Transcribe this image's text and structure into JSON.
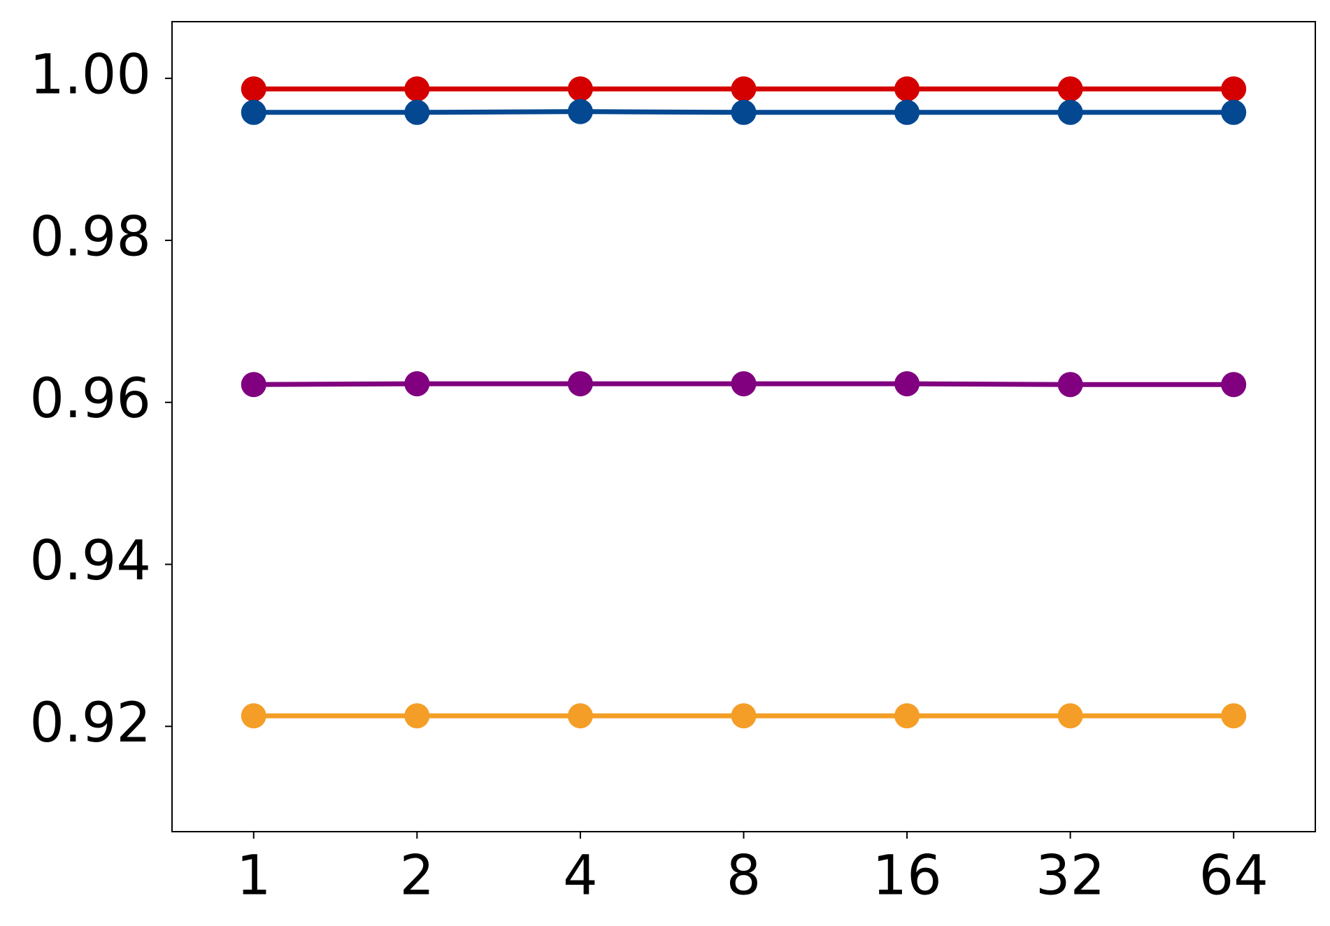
{
  "chart_data": {
    "type": "line",
    "categories": [
      "1",
      "2",
      "4",
      "8",
      "16",
      "32",
      "64"
    ],
    "series": [
      {
        "color": "#d40000",
        "values": [
          0.9987,
          0.9987,
          0.9987,
          0.9987,
          0.9987,
          0.9987,
          0.9987
        ]
      },
      {
        "color": "#034891",
        "values": [
          0.9958,
          0.9958,
          0.9959,
          0.9958,
          0.9958,
          0.9958,
          0.9958
        ]
      },
      {
        "color": "#800080",
        "values": [
          0.9622,
          0.9623,
          0.9623,
          0.9623,
          0.9623,
          0.9622,
          0.9622
        ]
      },
      {
        "color": "#f49e27",
        "values": [
          0.9213,
          0.9213,
          0.9213,
          0.9213,
          0.9213,
          0.9213,
          0.9213
        ]
      }
    ],
    "ylim": [
      0.907,
      1.007
    ],
    "yticks": [
      {
        "value": 0.92,
        "label": "0.92"
      },
      {
        "value": 0.94,
        "label": "0.94"
      },
      {
        "value": 0.96,
        "label": "0.96"
      },
      {
        "value": 0.98,
        "label": "0.98"
      },
      {
        "value": 1.0,
        "label": "1.00"
      }
    ],
    "grid": false
  }
}
